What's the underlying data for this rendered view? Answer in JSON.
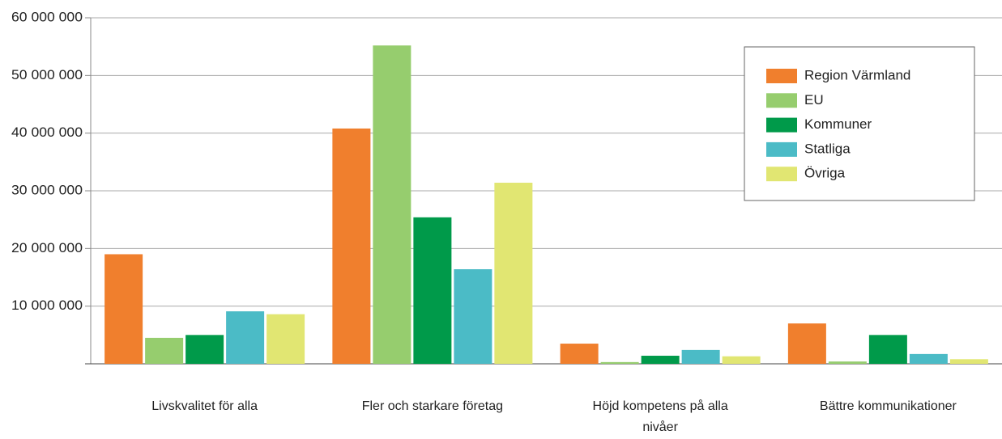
{
  "chart_data": {
    "type": "bar",
    "categories": [
      "Livskvalitet för alla",
      "Fler och starkare företag",
      "Höjd kompetens på alla nivåer",
      "Bättre kommunikationer"
    ],
    "series": [
      {
        "name": "Region Värmland",
        "color": "#f07f2d",
        "values": [
          19000000,
          40800000,
          3500000,
          7000000
        ]
      },
      {
        "name": "EU",
        "color": "#96cd6e",
        "values": [
          4500000,
          55200000,
          300000,
          400000
        ]
      },
      {
        "name": "Kommuner",
        "color": "#009a4a",
        "values": [
          5000000,
          25400000,
          1400000,
          5000000
        ]
      },
      {
        "name": "Statliga",
        "color": "#4bbbc6",
        "values": [
          9100000,
          16400000,
          2400000,
          1700000
        ]
      },
      {
        "name": "Övriga",
        "color": "#e1e672",
        "values": [
          8600000,
          31400000,
          1300000,
          800000
        ]
      }
    ],
    "ylim": [
      0,
      60000000
    ],
    "yticks": [
      {
        "value": 10000000,
        "label": "10 000 000"
      },
      {
        "value": 20000000,
        "label": "20 000 000"
      },
      {
        "value": 30000000,
        "label": "30 000 000"
      },
      {
        "value": 40000000,
        "label": "40 000 000"
      },
      {
        "value": 50000000,
        "label": "50 000 000"
      },
      {
        "value": 60000000,
        "label": "60 000 000"
      }
    ],
    "grid": true,
    "legend": "top-right"
  }
}
